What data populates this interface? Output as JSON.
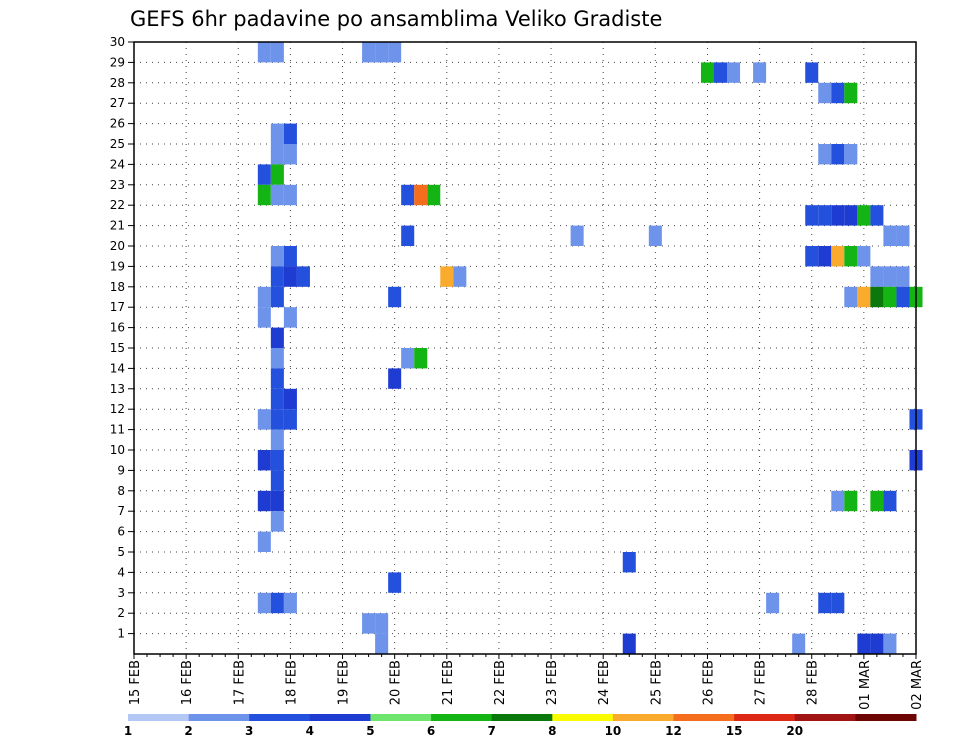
{
  "chart_data": {
    "type": "heatmap",
    "title": "GEFS 6hr padavine po ansamblima Veliko Gradiste",
    "y_ticks": [
      "1",
      "2",
      "3",
      "4",
      "5",
      "6",
      "7",
      "8",
      "9",
      "10",
      "11",
      "12",
      "13",
      "14",
      "15",
      "16",
      "17",
      "18",
      "19",
      "20",
      "21",
      "22",
      "23",
      "24",
      "25",
      "26",
      "27",
      "28",
      "29",
      "30"
    ],
    "ylim": [
      0,
      30
    ],
    "x_ticks": [
      "15 FEB",
      "16 FEB",
      "17 FEB",
      "18 FEB",
      "19 FEB",
      "20 FEB",
      "21 FEB",
      "22 FEB",
      "23 FEB",
      "24 FEB",
      "25 FEB",
      "26 FEB",
      "27 FEB",
      "28 FEB",
      "01 MAR",
      "02 MAR"
    ],
    "x_unit": "6h step from 15 FEB 00Z",
    "xlim": [
      0,
      60
    ],
    "grid": true,
    "colorbar": {
      "labels": [
        "1",
        "2",
        "3",
        "4",
        "5",
        "6",
        "7",
        "8",
        "10",
        "12",
        "15",
        "20"
      ],
      "colors": [
        "#b4c8f5",
        "#6e93eb",
        "#2350dc",
        "#1e3cd2",
        "#6ee66e",
        "#14b414",
        "#0a780a",
        "#fafa00",
        "#faaa2d",
        "#f56e1e",
        "#dc2814",
        "#a01414",
        "#6e0505"
      ]
    },
    "cells": [
      [
        10,
        30,
        1
      ],
      [
        11,
        30,
        1
      ],
      [
        18,
        30,
        1
      ],
      [
        19,
        30,
        1
      ],
      [
        20,
        30,
        1
      ],
      [
        44,
        29,
        5
      ],
      [
        45,
        29,
        2
      ],
      [
        46,
        29,
        1
      ],
      [
        48,
        29,
        1
      ],
      [
        52,
        29,
        2
      ],
      [
        53,
        28,
        1
      ],
      [
        54,
        28,
        2
      ],
      [
        55,
        28,
        5
      ],
      [
        11,
        26,
        1
      ],
      [
        12,
        26,
        2
      ],
      [
        11,
        25,
        1
      ],
      [
        12,
        25,
        1
      ],
      [
        53,
        25,
        1
      ],
      [
        54,
        25,
        2
      ],
      [
        55,
        25,
        1
      ],
      [
        10,
        24,
        2
      ],
      [
        11,
        24,
        5
      ],
      [
        10,
        23,
        5
      ],
      [
        11,
        23,
        1
      ],
      [
        12,
        23,
        1
      ],
      [
        21,
        23,
        2
      ],
      [
        22,
        23,
        9
      ],
      [
        23,
        23,
        5
      ],
      [
        52,
        22,
        2
      ],
      [
        53,
        22,
        2
      ],
      [
        54,
        22,
        3
      ],
      [
        55,
        22,
        3
      ],
      [
        56,
        22,
        5
      ],
      [
        57,
        22,
        2
      ],
      [
        21,
        21,
        2
      ],
      [
        34,
        21,
        1
      ],
      [
        40,
        21,
        1
      ],
      [
        58,
        21,
        1
      ],
      [
        59,
        21,
        1
      ],
      [
        11,
        20,
        1
      ],
      [
        12,
        20,
        2
      ],
      [
        52,
        20,
        2
      ],
      [
        53,
        20,
        3
      ],
      [
        54,
        20,
        8
      ],
      [
        55,
        20,
        5
      ],
      [
        56,
        20,
        1
      ],
      [
        11,
        19,
        2
      ],
      [
        12,
        19,
        3
      ],
      [
        13,
        19,
        2
      ],
      [
        24,
        19,
        8
      ],
      [
        25,
        19,
        1
      ],
      [
        57,
        19,
        1
      ],
      [
        58,
        19,
        1
      ],
      [
        59,
        19,
        1
      ],
      [
        10,
        18,
        1
      ],
      [
        11,
        18,
        2
      ],
      [
        20,
        18,
        2
      ],
      [
        55,
        18,
        1
      ],
      [
        56,
        18,
        8
      ],
      [
        57,
        18,
        6
      ],
      [
        58,
        18,
        5
      ],
      [
        59,
        18,
        2
      ],
      [
        60,
        18,
        5
      ],
      [
        10,
        17,
        1
      ],
      [
        12,
        17,
        1
      ],
      [
        11,
        16,
        3
      ],
      [
        11,
        15,
        1
      ],
      [
        21,
        15,
        1
      ],
      [
        22,
        15,
        5
      ],
      [
        11,
        14,
        2
      ],
      [
        20,
        14,
        3
      ],
      [
        11,
        13,
        2
      ],
      [
        12,
        13,
        3
      ],
      [
        10,
        12,
        1
      ],
      [
        11,
        12,
        2
      ],
      [
        12,
        12,
        2
      ],
      [
        60,
        12,
        2
      ],
      [
        11,
        11,
        1
      ],
      [
        10,
        10,
        3
      ],
      [
        11,
        10,
        2
      ],
      [
        60,
        10,
        3
      ],
      [
        11,
        9,
        2
      ],
      [
        10,
        8,
        3
      ],
      [
        11,
        8,
        3
      ],
      [
        54,
        8,
        1
      ],
      [
        55,
        8,
        5
      ],
      [
        57,
        8,
        5
      ],
      [
        58,
        8,
        2
      ],
      [
        11,
        7,
        1
      ],
      [
        10,
        6,
        1
      ],
      [
        38,
        5,
        2
      ],
      [
        20,
        4,
        2
      ],
      [
        10,
        3,
        1
      ],
      [
        11,
        3,
        2
      ],
      [
        12,
        3,
        1
      ],
      [
        49,
        3,
        1
      ],
      [
        53,
        3,
        2
      ],
      [
        54,
        3,
        2
      ],
      [
        18,
        2,
        1
      ],
      [
        19,
        2,
        1
      ],
      [
        19,
        1,
        1
      ],
      [
        38,
        1,
        3
      ],
      [
        51,
        1,
        1
      ],
      [
        56,
        1,
        3
      ],
      [
        57,
        1,
        3
      ],
      [
        58,
        1,
        1
      ]
    ]
  }
}
